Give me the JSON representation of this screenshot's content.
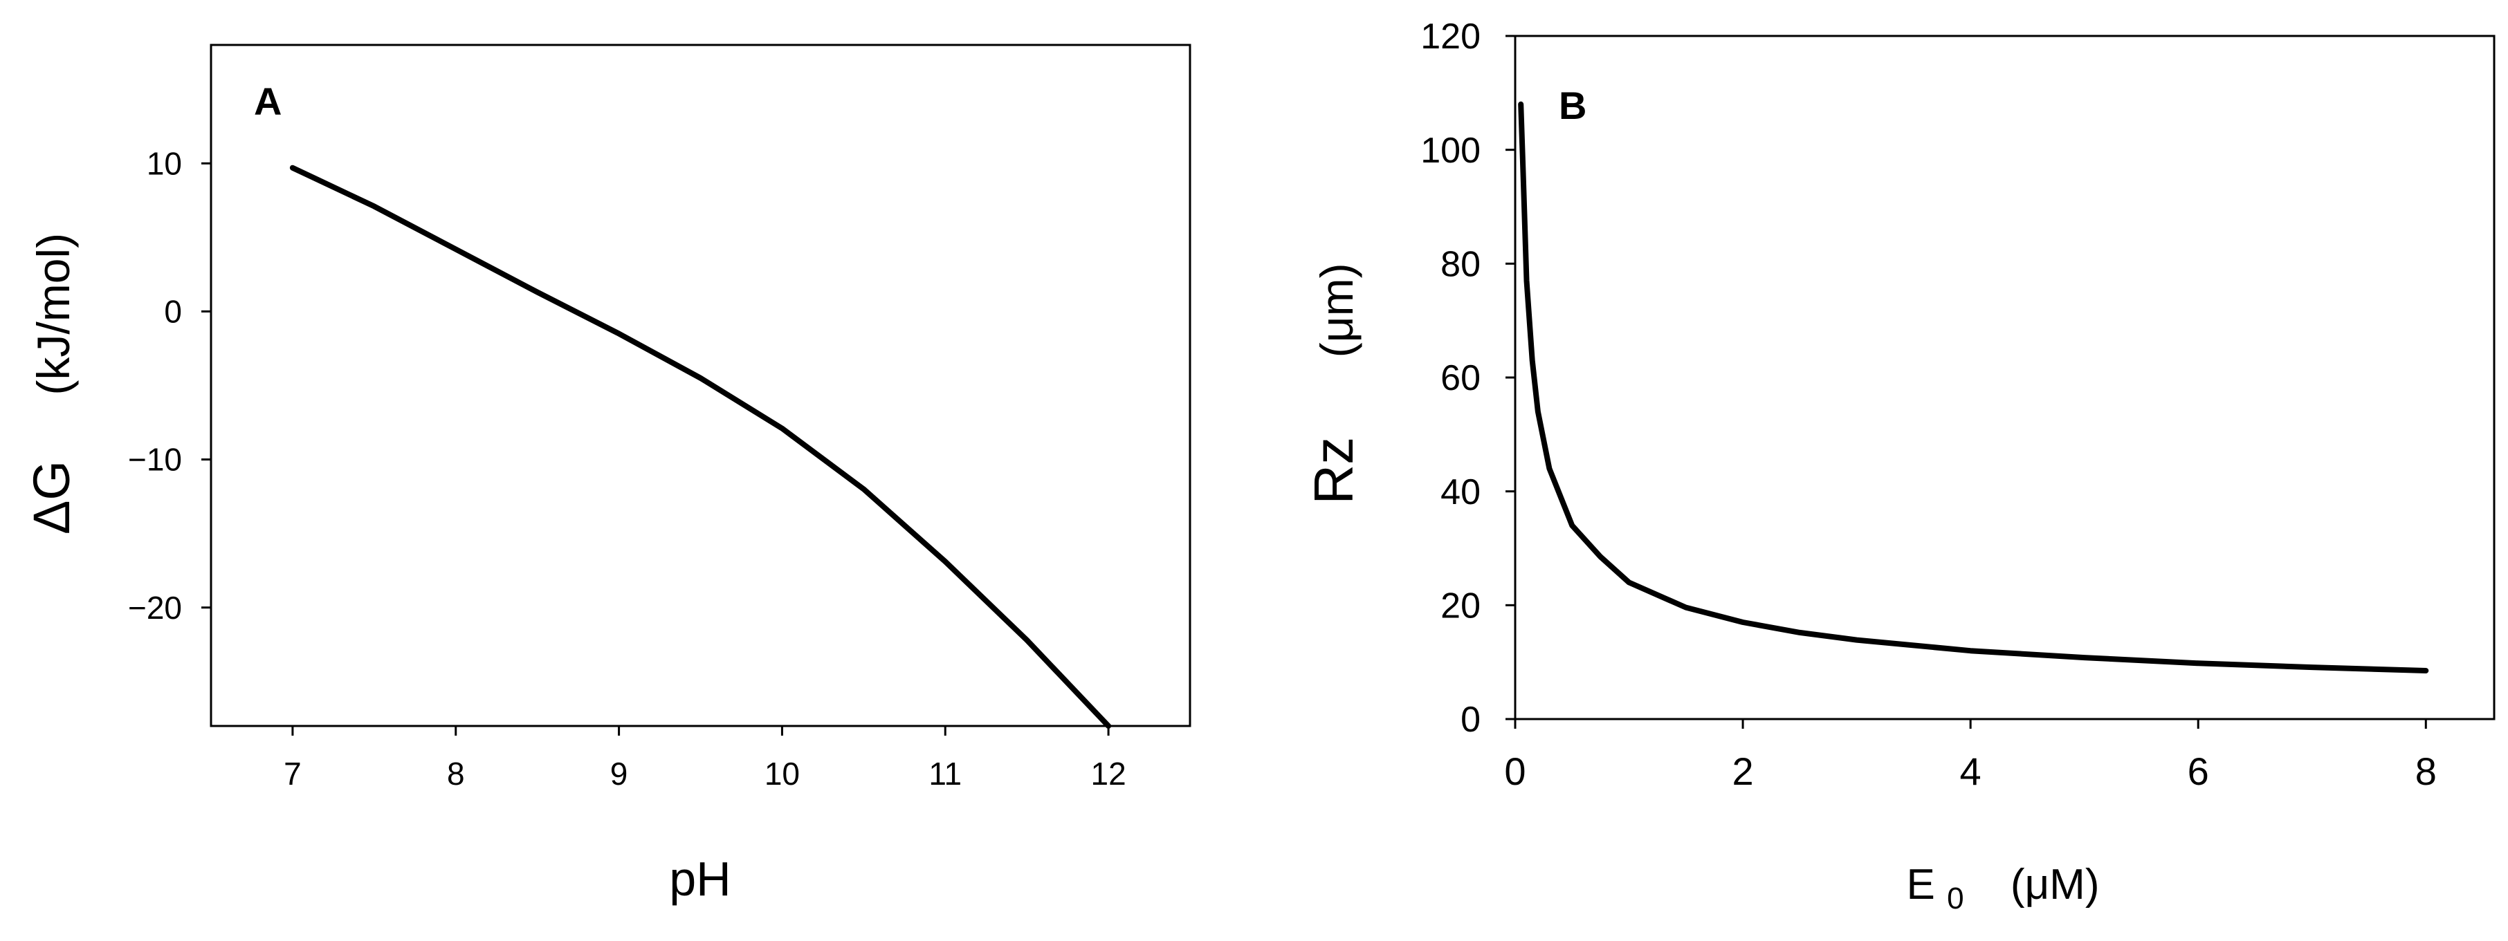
{
  "chart_data": [
    {
      "type": "line",
      "panel_label": "A",
      "xlabel": "pH",
      "ylabel_main": "ΔG",
      "ylabel_unit": "(kJ/mol)",
      "xlim": [
        6.5,
        12.5
      ],
      "ylim": [
        -28,
        18
      ],
      "xticks": [
        7,
        8,
        9,
        10,
        11,
        12
      ],
      "yticks": [
        10,
        0,
        -10,
        -20
      ],
      "ytick_labels": [
        "10",
        "0",
        "−10",
        "−20"
      ],
      "grid": false,
      "series": [
        {
          "x": [
            7,
            7.5,
            8,
            8.5,
            9,
            9.5,
            10,
            10.5,
            11,
            11.5,
            12
          ],
          "y": [
            9.7,
            7.1,
            4.2,
            1.3,
            -1.5,
            -4.5,
            -7.9,
            -12.0,
            -16.9,
            -22.2,
            -28.0
          ]
        }
      ]
    },
    {
      "type": "line",
      "panel_label": "B",
      "xlabel_main": "E",
      "xlabel_sub": "0",
      "xlabel_unit": "(μM)",
      "ylabel_main": "Rz",
      "ylabel_unit": "(μm)",
      "xlim": [
        0,
        8.6
      ],
      "ylim": [
        0,
        120
      ],
      "xticks": [
        0,
        2,
        4,
        6,
        8
      ],
      "yticks": [
        0,
        20,
        40,
        60,
        80,
        100,
        120
      ],
      "grid": false,
      "series": [
        {
          "x": [
            0.05,
            0.07,
            0.1,
            0.15,
            0.2,
            0.3,
            0.5,
            0.75,
            1,
            1.5,
            2,
            2.5,
            3,
            4,
            5,
            6,
            7,
            8
          ],
          "y": [
            108,
            96,
            77,
            63,
            54,
            44,
            34,
            28.5,
            24,
            19.6,
            17,
            15.2,
            13.9,
            12,
            10.8,
            9.8,
            9.1,
            8.5
          ]
        }
      ]
    }
  ]
}
